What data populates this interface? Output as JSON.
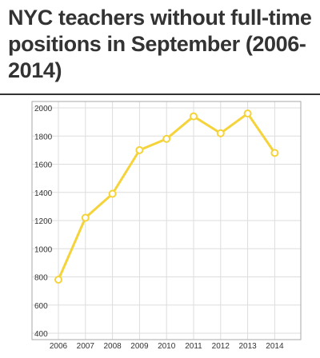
{
  "title": "NYC teachers without full-time positions in September (2006-2014)",
  "chart_data": {
    "type": "line",
    "title": "NYC teachers without full-time positions in September (2006-2014)",
    "xlabel": "",
    "ylabel": "",
    "x": [
      2006,
      2007,
      2008,
      2009,
      2010,
      2011,
      2012,
      2013,
      2014
    ],
    "ylim": [
      400,
      2000
    ],
    "ytick_labels": [
      "2000",
      "1800",
      "1600",
      "1400",
      "1200",
      "1000",
      "800",
      "600",
      "400"
    ],
    "xtick_labels": [
      "2006",
      "2007",
      "2008",
      "2009",
      "2010",
      "2011",
      "2012",
      "2013",
      "2014"
    ],
    "series": [
      {
        "values": [
          780,
          1220,
          1390,
          1700,
          1780,
          1940,
          1820,
          1960,
          1680
        ]
      }
    ],
    "grid": true,
    "legend": "none",
    "colors": {
      "line": "#F5D33A",
      "marker_fill": "#FFFFFF",
      "grid": "#DDDDDD",
      "frame": "#AAAAAA"
    }
  }
}
